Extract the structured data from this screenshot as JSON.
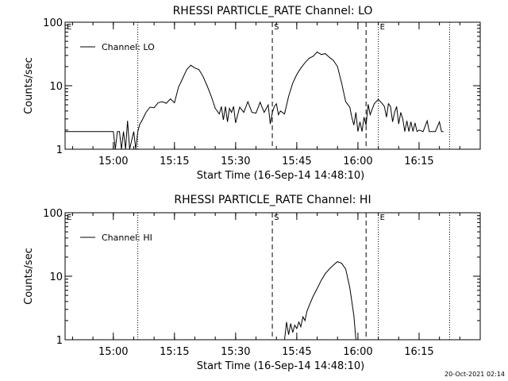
{
  "footer_timestamp": "20-Oct-2021 02:14",
  "chart_data": [
    {
      "type": "line",
      "title": "RHESSI PARTICLE_RATE Channel: LO",
      "xlabel": "Start Time (16-Sep-14 14:48:10)",
      "ylabel": "Counts/sec",
      "y_scale": "log",
      "ylim": [
        1,
        100
      ],
      "y_ticks": [
        {
          "v": 1,
          "label": "1"
        },
        {
          "v": 10,
          "label": "10"
        },
        {
          "v": 100,
          "label": "100"
        }
      ],
      "xlim": [
        "14:48:10",
        "16:30:00"
      ],
      "x_ticks": [
        "15:00",
        "15:15",
        "15:30",
        "15:45",
        "16:00",
        "16:15"
      ],
      "legend": {
        "position": "top-left",
        "label": "Channel: LO"
      },
      "markers": [
        {
          "label": "E",
          "time": "14:48:10",
          "style": "none"
        },
        {
          "label": "",
          "time": "15:06:00",
          "style": "dotted"
        },
        {
          "label": "S",
          "time": "15:39:00",
          "style": "dashed"
        },
        {
          "label": "",
          "time": "16:02:00",
          "style": "dashed"
        },
        {
          "label": "E",
          "time": "16:05:00",
          "style": "dotted"
        },
        {
          "label": "",
          "time": "16:22:30",
          "style": "dotted"
        }
      ],
      "series": [
        {
          "name": "Channel: LO",
          "points": [
            [
              "14:48:10",
              1.9
            ],
            [
              "15:00:00",
              1.9
            ],
            [
              "15:00:30",
              1
            ],
            [
              "15:01:00",
              1.9
            ],
            [
              "15:01:30",
              1.9
            ],
            [
              "15:02:00",
              1
            ],
            [
              "15:02:30",
              1.9
            ],
            [
              "15:03:00",
              1
            ],
            [
              "15:03:30",
              2.8
            ],
            [
              "15:04:00",
              1
            ],
            [
              "15:05:00",
              1.9
            ],
            [
              "15:05:30",
              1
            ],
            [
              "15:06:00",
              1.9
            ],
            [
              "15:06:30",
              2.5
            ],
            [
              "15:07:00",
              2.8
            ],
            [
              "15:08:00",
              3.8
            ],
            [
              "15:09:00",
              4.6
            ],
            [
              "15:10:00",
              4.5
            ],
            [
              "15:11:00",
              5.4
            ],
            [
              "15:12:00",
              5.6
            ],
            [
              "15:13:00",
              5.3
            ],
            [
              "15:14:00",
              6.2
            ],
            [
              "15:15:00",
              5.4
            ],
            [
              "15:16:00",
              9.5
            ],
            [
              "15:17:00",
              13
            ],
            [
              "15:18:00",
              18
            ],
            [
              "15:19:00",
              21
            ],
            [
              "15:20:00",
              19
            ],
            [
              "15:21:00",
              18
            ],
            [
              "15:22:00",
              14
            ],
            [
              "15:23:00",
              10
            ],
            [
              "15:24:00",
              6.9
            ],
            [
              "15:25:00",
              4.4
            ],
            [
              "15:26:00",
              3.6
            ],
            [
              "15:26:30",
              4.7
            ],
            [
              "15:27:00",
              2.9
            ],
            [
              "15:27:30",
              4.7
            ],
            [
              "15:28:00",
              2.7
            ],
            [
              "15:28:30",
              4.4
            ],
            [
              "15:29:00",
              3.8
            ],
            [
              "15:29:30",
              4.7
            ],
            [
              "15:30:00",
              2.6
            ],
            [
              "15:31:00",
              4.6
            ],
            [
              "15:32:00",
              3.8
            ],
            [
              "15:33:00",
              5.6
            ],
            [
              "15:34:00",
              3.8
            ],
            [
              "15:35:00",
              3.7
            ],
            [
              "15:36:00",
              5.5
            ],
            [
              "15:37:00",
              3.8
            ],
            [
              "15:38:00",
              5
            ],
            [
              "15:38:30",
              2.5
            ],
            [
              "15:39:00",
              3.8
            ],
            [
              "15:39:30",
              4.7
            ],
            [
              "15:40:00",
              5.2
            ],
            [
              "15:40:30",
              3.5
            ],
            [
              "15:41:00",
              4
            ],
            [
              "15:42:00",
              3.6
            ],
            [
              "15:43:00",
              6.8
            ],
            [
              "15:44:00",
              11
            ],
            [
              "15:45:00",
              15
            ],
            [
              "15:46:00",
              19
            ],
            [
              "15:47:00",
              23
            ],
            [
              "15:48:00",
              27
            ],
            [
              "15:49:00",
              29
            ],
            [
              "15:50:00",
              34
            ],
            [
              "15:51:00",
              31
            ],
            [
              "15:52:00",
              32
            ],
            [
              "15:53:00",
              28
            ],
            [
              "15:54:00",
              25
            ],
            [
              "15:55:00",
              20
            ],
            [
              "15:56:00",
              11
            ],
            [
              "15:57:00",
              5.6
            ],
            [
              "15:58:00",
              4.6
            ],
            [
              "15:58:30",
              3.2
            ],
            [
              "15:59:00",
              2.4
            ],
            [
              "15:59:30",
              3.8
            ],
            [
              "16:00:00",
              1.9
            ],
            [
              "16:00:30",
              2.7
            ],
            [
              "16:01:00",
              1.9
            ],
            [
              "16:01:30",
              3.2
            ],
            [
              "16:02:00",
              2.4
            ],
            [
              "16:02:30",
              5.1
            ],
            [
              "16:03:00",
              3.5
            ],
            [
              "16:04:00",
              5.2
            ],
            [
              "16:05:00",
              6.1
            ],
            [
              "16:06:00",
              5.2
            ],
            [
              "16:06:30",
              4.7
            ],
            [
              "16:07:00",
              3.2
            ],
            [
              "16:07:30",
              5.2
            ],
            [
              "16:08:00",
              4.7
            ],
            [
              "16:08:30",
              2.7
            ],
            [
              "16:09:00",
              3.8
            ],
            [
              "16:09:30",
              4.7
            ],
            [
              "16:10:00",
              2.5
            ],
            [
              "16:10:30",
              3.8
            ],
            [
              "16:11:00",
              3
            ],
            [
              "16:11:30",
              1.9
            ],
            [
              "16:12:00",
              2.8
            ],
            [
              "16:12:30",
              1.9
            ],
            [
              "16:13:00",
              2.7
            ],
            [
              "16:13:30",
              1.9
            ],
            [
              "16:14:00",
              2.6
            ],
            [
              "16:14:30",
              1.9
            ],
            [
              "16:15:00",
              2
            ],
            [
              "16:16:00",
              1.9
            ],
            [
              "16:17:00",
              2.8
            ],
            [
              "16:17:30",
              1.9
            ],
            [
              "16:18:00",
              1.9
            ],
            [
              "16:19:00",
              1.9
            ],
            [
              "16:20:00",
              2.7
            ],
            [
              "16:20:30",
              1.9
            ],
            [
              "16:21:00",
              1.9
            ]
          ]
        }
      ]
    },
    {
      "type": "line",
      "title": "RHESSI PARTICLE_RATE Channel: HI",
      "xlabel": "Start Time (16-Sep-14 14:48:10)",
      "ylabel": "Counts/sec",
      "y_scale": "log",
      "ylim": [
        1,
        100
      ],
      "y_ticks": [
        {
          "v": 1,
          "label": "1"
        },
        {
          "v": 10,
          "label": "10"
        },
        {
          "v": 100,
          "label": "100"
        }
      ],
      "xlim": [
        "14:48:10",
        "16:30:00"
      ],
      "x_ticks": [
        "15:00",
        "15:15",
        "15:30",
        "15:45",
        "16:00",
        "16:15"
      ],
      "legend": {
        "position": "top-left",
        "label": "Channel: HI"
      },
      "markers": [
        {
          "label": "E",
          "time": "14:48:10",
          "style": "none"
        },
        {
          "label": "",
          "time": "15:06:00",
          "style": "dotted"
        },
        {
          "label": "S",
          "time": "15:39:00",
          "style": "dashed"
        },
        {
          "label": "",
          "time": "16:02:00",
          "style": "dashed"
        },
        {
          "label": "E",
          "time": "16:05:00",
          "style": "dotted"
        },
        {
          "label": "",
          "time": "16:22:30",
          "style": "dotted"
        }
      ],
      "series": [
        {
          "name": "Channel: HI",
          "points": [
            [
              "15:42:00",
              1
            ],
            [
              "15:42:30",
              1.9
            ],
            [
              "15:43:00",
              1.2
            ],
            [
              "15:43:30",
              1.8
            ],
            [
              "15:44:00",
              1.3
            ],
            [
              "15:44:30",
              1.7
            ],
            [
              "15:45:00",
              1.5
            ],
            [
              "15:45:30",
              1.9
            ],
            [
              "15:46:00",
              1.6
            ],
            [
              "15:46:30",
              2.3
            ],
            [
              "15:47:00",
              2
            ],
            [
              "15:47:30",
              2.8
            ],
            [
              "15:48:00",
              3.4
            ],
            [
              "15:49:00",
              4.8
            ],
            [
              "15:50:00",
              6.4
            ],
            [
              "15:51:00",
              8.6
            ],
            [
              "15:52:00",
              11
            ],
            [
              "15:53:00",
              13
            ],
            [
              "15:54:00",
              15
            ],
            [
              "15:55:00",
              17
            ],
            [
              "15:56:00",
              16
            ],
            [
              "15:57:00",
              13
            ],
            [
              "15:58:00",
              6.6
            ],
            [
              "15:59:00",
              2.4
            ],
            [
              "15:59:30",
              1
            ]
          ]
        }
      ]
    }
  ]
}
